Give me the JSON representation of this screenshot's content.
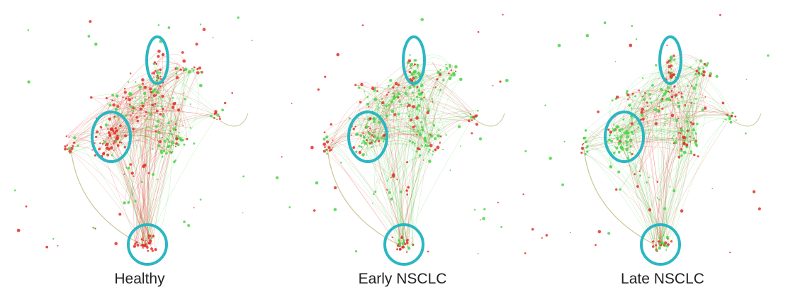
{
  "panels": [
    {
      "label": "Healthy"
    },
    {
      "label": "Early NSCLC"
    },
    {
      "label": "Late NSCLC"
    }
  ]
}
